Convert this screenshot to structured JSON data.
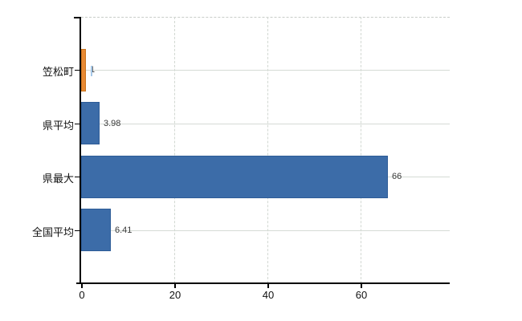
{
  "chart_data": {
    "type": "bar",
    "orientation": "horizontal",
    "title": "",
    "categories": [
      "笠松町",
      "県平均",
      "県最大",
      "全国平均"
    ],
    "values": [
      1,
      3.98,
      66,
      6.41
    ],
    "value_labels": [
      "1",
      "3.98",
      "66",
      "6.41"
    ],
    "bar_fill_colors": [
      "#E98A33",
      "#3C6CA8",
      "#3C6CA8",
      "#3C6CA8"
    ],
    "bar_border_colors": [
      "#C9741F",
      "#2E5C97",
      "#2E5C97",
      "#2E5C97"
    ],
    "x_axis": {
      "tick_labels": [
        "0",
        "20",
        "40",
        "60"
      ],
      "tick_values": [
        0,
        20,
        40,
        60
      ],
      "min": 0,
      "max": 79.2
    },
    "legend": "none",
    "grid": {
      "horizontal": true,
      "vertical": true
    }
  },
  "colors": {
    "background": "#FFFFFF",
    "axis_line": "#000000",
    "gridline_h": "#D5DBD5",
    "gridline_v": "#D2D8D2",
    "plot_top_border": "#C9CDC9",
    "category_text": "#111111",
    "value_text": "#3A3A3A",
    "cursor_mark": "#A6C8E8"
  }
}
